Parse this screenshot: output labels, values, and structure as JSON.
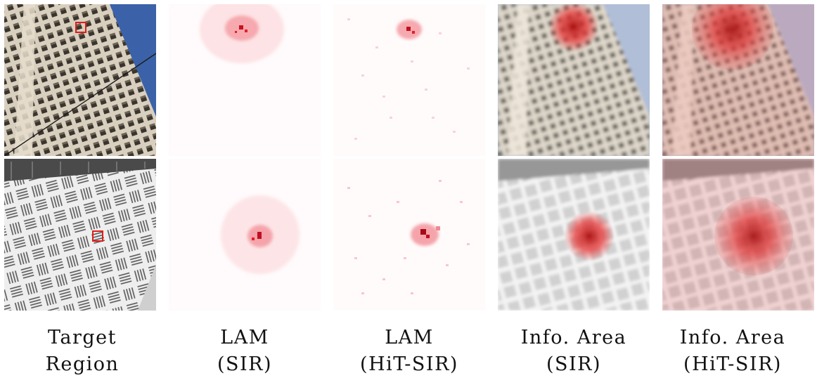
{
  "columns": [
    {
      "line1": "Target",
      "line2": "Region"
    },
    {
      "line1": "LAM",
      "line2": "(SIR)"
    },
    {
      "line1": "LAM",
      "line2": "(HiT-SIR)"
    },
    {
      "line1": "Info. Area",
      "line2": "(SIR)"
    },
    {
      "line1": "Info. Area",
      "line2": "(HiT-SIR)"
    }
  ],
  "rows": [
    {
      "scene": "skyscraper facade with window grid against blue sky"
    },
    {
      "scene": "white perforated panel wall with diagonal slat pattern"
    }
  ],
  "colors": {
    "highlight": "#e21a1a",
    "sky": "#3b62a8"
  }
}
